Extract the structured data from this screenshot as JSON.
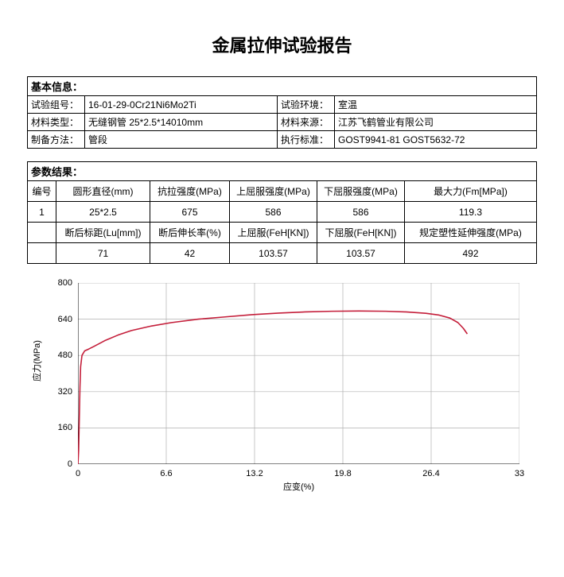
{
  "title": "金属拉伸试验报告",
  "basic": {
    "header": "基本信息：",
    "rows": [
      {
        "l1": "试验组号：",
        "v1": "16-01-29-0Cr21Ni6Mo2Ti",
        "l2": "试验环境：",
        "v2": "室温"
      },
      {
        "l1": "材料类型：",
        "v1": "无缝钢管 25*2.5*14010mm",
        "l2": "材料来源：",
        "v2": "江苏飞鹤管业有限公司"
      },
      {
        "l1": "制备方法：",
        "v1": "管段",
        "l2": "执行标准：",
        "v2": "GOST9941-81 GOST5632-72"
      }
    ]
  },
  "results": {
    "header": "参数结果：",
    "head1": [
      "编号",
      "圆形直径(mm)",
      "抗拉强度(MPa)",
      "上屈服强度(MPa)",
      "下屈服强度(MPa)",
      "最大力(Fm[MPa])"
    ],
    "row1": [
      "1",
      "25*2.5",
      "675",
      "586",
      "586",
      "119.3"
    ],
    "head2": [
      "",
      "断后标距(Lu[mm])",
      "断后伸长率(%)",
      "上屈服(FeH[KN])",
      "下屈服(FeH[KN])",
      "规定塑性延伸强度(MPa)"
    ],
    "row2": [
      "",
      "71",
      "42",
      "103.57",
      "103.57",
      "492"
    ]
  },
  "chart": {
    "type": "line",
    "x_label": "应变(%)",
    "y_label": "应力(MPa)",
    "xlim": [
      0,
      33
    ],
    "ylim": [
      0,
      800
    ],
    "x_ticks": [
      0,
      6.6,
      13.2,
      19.8,
      26.4,
      33
    ],
    "y_ticks": [
      0,
      160,
      320,
      480,
      640,
      800
    ],
    "line_color": "#c41e3a",
    "grid_color": "#b0b0b0",
    "axis_color": "#000000",
    "background": "#ffffff",
    "line_width": 1.6,
    "data": [
      [
        0,
        0
      ],
      [
        0.05,
        60
      ],
      [
        0.1,
        200
      ],
      [
        0.15,
        340
      ],
      [
        0.2,
        430
      ],
      [
        0.3,
        480
      ],
      [
        0.5,
        500
      ],
      [
        0.8,
        508
      ],
      [
        1.2,
        520
      ],
      [
        2,
        545
      ],
      [
        3,
        570
      ],
      [
        4,
        590
      ],
      [
        5.5,
        610
      ],
      [
        7,
        625
      ],
      [
        9,
        640
      ],
      [
        11,
        650
      ],
      [
        13,
        660
      ],
      [
        15,
        667
      ],
      [
        17,
        672
      ],
      [
        19,
        675
      ],
      [
        21,
        676
      ],
      [
        23,
        675
      ],
      [
        24.5,
        672
      ],
      [
        26,
        666
      ],
      [
        27,
        658
      ],
      [
        27.8,
        645
      ],
      [
        28.4,
        625
      ],
      [
        28.8,
        600
      ],
      [
        29.1,
        575
      ]
    ]
  }
}
